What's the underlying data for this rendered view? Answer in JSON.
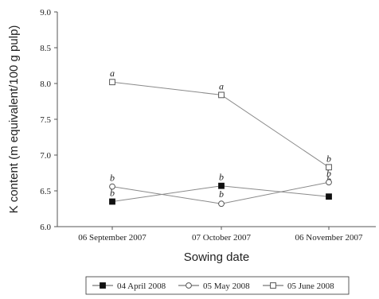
{
  "chart_data": {
    "type": "line",
    "categories": [
      "06 September 2007",
      "07 October 2007",
      "06 November 2007"
    ],
    "xlabel": "Sowing date",
    "ylabel": "K content (m equivalent/100 g pulp)",
    "ylim": [
      6.0,
      9.0
    ],
    "yticks": [
      "6.0",
      "6.5",
      "7.0",
      "7.5",
      "8.0",
      "8.5",
      "9.0"
    ],
    "grid": false,
    "legend_position": "bottom",
    "series": [
      {
        "name": "04 April 2008",
        "marker": "filled-square",
        "values": [
          6.35,
          6.57,
          6.42
        ],
        "labels": [
          "b",
          "b",
          "b"
        ]
      },
      {
        "name": "05 May 2008",
        "marker": "open-circle",
        "values": [
          6.56,
          6.32,
          6.62
        ],
        "labels": [
          "b",
          "b",
          "b"
        ]
      },
      {
        "name": "05 June 2008",
        "marker": "open-square",
        "values": [
          8.02,
          7.84,
          6.83
        ],
        "labels": [
          "a",
          "a",
          "b"
        ]
      }
    ],
    "line_color": "#8a8a8a"
  }
}
